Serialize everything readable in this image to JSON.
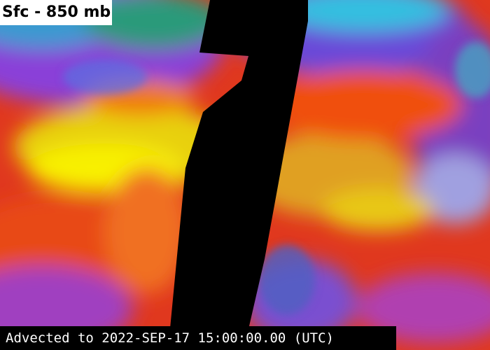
{
  "header": {
    "title": "Sfc - 850 mb"
  },
  "footer": {
    "caption": "Advected to 2022-SEP-17 15:00:00.00 (UTC)"
  }
}
